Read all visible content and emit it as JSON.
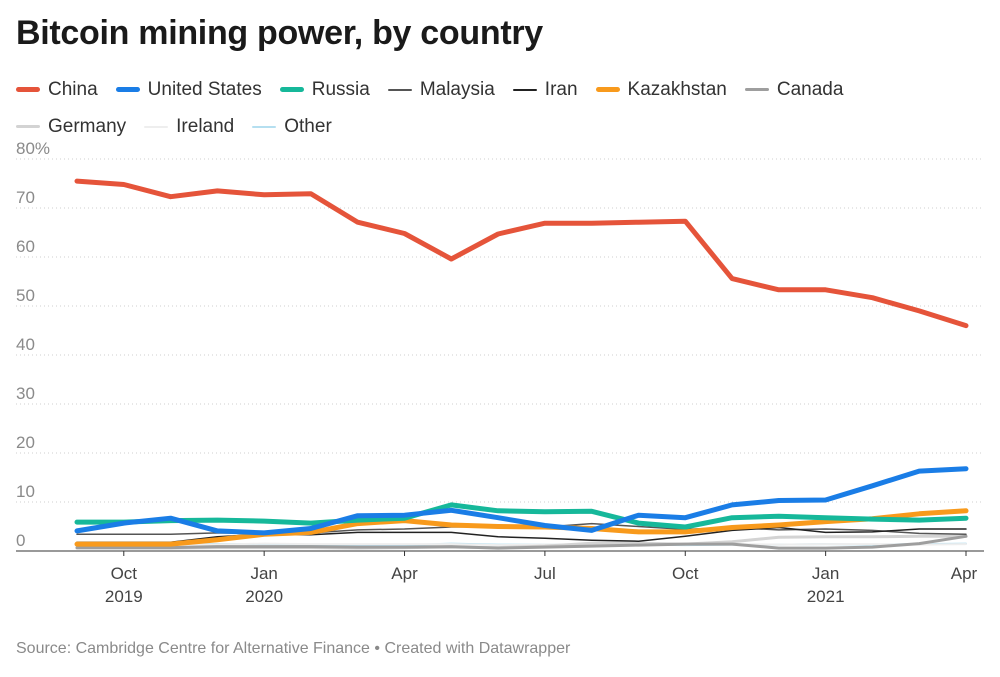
{
  "title": "Bitcoin mining power, by country",
  "source": "Source: Cambridge Centre for Alternative Finance • Created with Datawrapper",
  "chart_data": {
    "type": "line",
    "title": "Bitcoin mining power, by country",
    "ylabel": "",
    "xlabel": "",
    "ylim": [
      0,
      80
    ],
    "y_ticks": [
      "80%",
      "70",
      "60",
      "50",
      "40",
      "30",
      "20",
      "10",
      "0"
    ],
    "y_tick_values": [
      80,
      70,
      60,
      50,
      40,
      30,
      20,
      10,
      0
    ],
    "grid": "horizontal dotted",
    "legend_position": "top",
    "x": [
      "2019-09",
      "2019-10",
      "2019-11",
      "2019-12",
      "2020-01",
      "2020-02",
      "2020-03",
      "2020-04",
      "2020-05",
      "2020-06",
      "2020-07",
      "2020-08",
      "2020-09",
      "2020-10",
      "2020-11",
      "2020-12",
      "2021-01",
      "2021-02",
      "2021-03",
      "2021-04"
    ],
    "x_ticks": [
      {
        "x": "2019-10",
        "line1": "Oct",
        "line2": "2019"
      },
      {
        "x": "2020-01",
        "line1": "Jan",
        "line2": "2020"
      },
      {
        "x": "2020-04",
        "line1": "Apr",
        "line2": ""
      },
      {
        "x": "2020-07",
        "line1": "Jul",
        "line2": ""
      },
      {
        "x": "2020-10",
        "line1": "Oct",
        "line2": ""
      },
      {
        "x": "2021-01",
        "line1": "Jan",
        "line2": "2021"
      },
      {
        "x": "2021-04",
        "line1": "Apr",
        "line2": ""
      }
    ],
    "series": [
      {
        "name": "Other",
        "color": "#b5dff0",
        "weight": 2,
        "values": [
          1.5,
          1.5,
          1.5,
          1.4,
          1.4,
          1.3,
          1.2,
          1.2,
          1.5,
          1.3,
          1.3,
          1.3,
          1.3,
          1.2,
          1.3,
          1.3,
          1.4,
          1.3,
          1.4,
          1.5
        ]
      },
      {
        "name": "Ireland",
        "color": "#eeeeee",
        "weight": 2,
        "values": [
          1.4,
          1.3,
          1.3,
          1.3,
          1.5,
          1.4,
          1.4,
          1.4,
          1.4,
          1.2,
          1.3,
          1.3,
          1.4,
          1.3,
          1.4,
          1.3,
          1.4,
          1.4,
          1.3,
          1.4
        ]
      },
      {
        "name": "Germany",
        "color": "#d3d3d3",
        "weight": 3,
        "values": [
          0.6,
          0.6,
          0.6,
          0.7,
          0.7,
          0.7,
          0.6,
          0.7,
          0.8,
          0.7,
          1.0,
          1.6,
          1.6,
          1.4,
          1.9,
          2.8,
          2.9,
          2.9,
          3.0,
          3.0
        ]
      },
      {
        "name": "Canada",
        "color": "#9e9e9e",
        "weight": 3,
        "values": [
          0.7,
          0.7,
          0.7,
          0.9,
          0.9,
          0.9,
          0.8,
          0.8,
          0.9,
          0.6,
          0.8,
          1.0,
          1.2,
          1.4,
          1.4,
          0.6,
          0.6,
          0.8,
          1.5,
          3.0
        ]
      },
      {
        "name": "Malaysia",
        "color": "#555555",
        "weight": 1.5,
        "values": [
          3.4,
          3.4,
          3.4,
          3.7,
          3.6,
          3.7,
          4.3,
          4.5,
          4.9,
          5.0,
          4.9,
          5.6,
          5.0,
          4.4,
          4.8,
          4.3,
          4.5,
          4.2,
          3.6,
          3.4
        ]
      },
      {
        "name": "Iran",
        "color": "#222222",
        "weight": 1.5,
        "values": [
          1.8,
          1.8,
          1.8,
          2.9,
          3.4,
          3.3,
          3.8,
          3.8,
          3.8,
          2.9,
          2.6,
          2.2,
          2.0,
          3.0,
          4.2,
          4.8,
          3.8,
          3.9,
          4.5,
          4.5
        ]
      },
      {
        "name": "Kazakhstan",
        "color": "#f89a1c",
        "weight": 5,
        "values": [
          1.4,
          1.4,
          1.4,
          2.3,
          3.4,
          3.8,
          5.6,
          6.2,
          5.3,
          5.0,
          4.9,
          4.6,
          3.9,
          3.9,
          4.8,
          5.3,
          6.0,
          6.6,
          7.6,
          8.2
        ]
      },
      {
        "name": "Russia",
        "color": "#16b89a",
        "weight": 5,
        "values": [
          5.9,
          5.9,
          6.2,
          6.3,
          6.1,
          5.7,
          6.3,
          6.7,
          9.4,
          8.2,
          8.0,
          8.1,
          5.7,
          4.9,
          6.8,
          7.1,
          6.8,
          6.5,
          6.3,
          6.7
        ]
      },
      {
        "name": "United States",
        "color": "#1a7de6",
        "weight": 5,
        "values": [
          4.1,
          5.7,
          6.7,
          4.1,
          3.7,
          4.6,
          7.2,
          7.3,
          8.3,
          6.8,
          5.2,
          4.2,
          7.3,
          6.8,
          9.4,
          10.3,
          10.4,
          13.3,
          16.3,
          16.8
        ]
      },
      {
        "name": "China",
        "color": "#e5543a",
        "weight": 5,
        "values": [
          75.5,
          74.8,
          72.3,
          73.5,
          72.7,
          72.9,
          67.1,
          64.8,
          59.6,
          64.7,
          66.9,
          66.9,
          67.1,
          67.3,
          55.6,
          53.3,
          53.3,
          51.7,
          49.0,
          46.0
        ]
      }
    ]
  },
  "legend": [
    {
      "name": "China",
      "color": "#e5543a",
      "weight": 5
    },
    {
      "name": "United States",
      "color": "#1a7de6",
      "weight": 5
    },
    {
      "name": "Russia",
      "color": "#16b89a",
      "weight": 5
    },
    {
      "name": "Malaysia",
      "color": "#555555",
      "weight": 1.5
    },
    {
      "name": "Iran",
      "color": "#222222",
      "weight": 1.5
    },
    {
      "name": "Kazakhstan",
      "color": "#f89a1c",
      "weight": 5
    },
    {
      "name": "Canada",
      "color": "#9e9e9e",
      "weight": 3
    },
    {
      "name": "Germany",
      "color": "#d3d3d3",
      "weight": 3
    },
    {
      "name": "Ireland",
      "color": "#eeeeee",
      "weight": 2
    },
    {
      "name": "Other",
      "color": "#b5dff0",
      "weight": 2
    }
  ]
}
